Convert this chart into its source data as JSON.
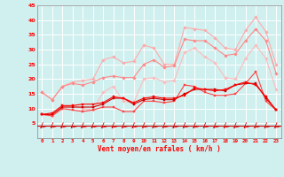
{
  "x": [
    0,
    1,
    2,
    3,
    4,
    5,
    6,
    7,
    8,
    9,
    10,
    11,
    12,
    13,
    14,
    15,
    16,
    17,
    18,
    19,
    20,
    21,
    22,
    23
  ],
  "series": [
    {
      "color": "#ffaaaa",
      "alpha": 1.0,
      "linewidth": 0.8,
      "marker": "D",
      "markersize": 1.8,
      "values": [
        15.5,
        13.0,
        17.5,
        19.0,
        19.5,
        20.0,
        26.5,
        27.5,
        25.5,
        26.0,
        31.5,
        30.5,
        25.0,
        25.0,
        37.5,
        37.0,
        36.5,
        34.0,
        30.5,
        30.0,
        36.5,
        41.0,
        36.0,
        25.0
      ]
    },
    {
      "color": "#ff8888",
      "alpha": 1.0,
      "linewidth": 0.8,
      "marker": "D",
      "markersize": 1.8,
      "values": [
        15.5,
        13.0,
        17.5,
        18.5,
        18.0,
        19.0,
        20.5,
        21.0,
        20.5,
        20.5,
        25.0,
        26.5,
        24.0,
        24.5,
        33.5,
        33.0,
        33.0,
        30.5,
        28.0,
        28.5,
        33.0,
        37.0,
        33.0,
        22.0
      ]
    },
    {
      "color": "#ffbbbb",
      "alpha": 1.0,
      "linewidth": 0.8,
      "marker": "D",
      "markersize": 1.8,
      "values": [
        8.0,
        7.5,
        10.5,
        11.0,
        10.0,
        9.5,
        15.5,
        17.5,
        12.5,
        12.0,
        20.0,
        20.5,
        19.0,
        19.5,
        29.0,
        30.5,
        27.5,
        25.5,
        20.5,
        20.0,
        27.0,
        31.5,
        27.0,
        16.5
      ]
    },
    {
      "color": "#ff4444",
      "alpha": 1.0,
      "linewidth": 0.8,
      "marker": "s",
      "markersize": 1.8,
      "values": [
        8.0,
        7.5,
        10.0,
        9.5,
        9.0,
        9.5,
        10.5,
        10.5,
        9.0,
        9.0,
        12.5,
        12.5,
        12.0,
        12.5,
        18.0,
        17.5,
        15.5,
        14.5,
        14.5,
        15.0,
        18.5,
        22.5,
        12.5,
        9.5
      ]
    },
    {
      "color": "#cc0000",
      "alpha": 1.0,
      "linewidth": 0.8,
      "marker": "s",
      "markersize": 1.8,
      "values": [
        8.0,
        8.0,
        10.5,
        10.5,
        10.5,
        10.5,
        11.5,
        13.5,
        13.5,
        11.5,
        13.0,
        13.5,
        13.0,
        13.0,
        15.0,
        16.5,
        16.5,
        16.5,
        16.0,
        18.0,
        18.5,
        18.5,
        13.5,
        9.5
      ]
    },
    {
      "color": "#ff0000",
      "alpha": 1.0,
      "linewidth": 0.8,
      "marker": "s",
      "markersize": 1.8,
      "values": [
        8.0,
        8.5,
        11.0,
        11.0,
        11.5,
        11.5,
        12.0,
        14.0,
        13.5,
        12.0,
        13.5,
        14.0,
        13.5,
        13.5,
        14.5,
        17.0,
        16.5,
        16.0,
        16.5,
        18.0,
        19.0,
        18.0,
        14.0,
        9.5
      ]
    }
  ],
  "title": "",
  "xlabel": "Vent moyen/en rafales ( km/h )",
  "ylabel": "",
  "xlim": [
    -0.5,
    23.5
  ],
  "ylim": [
    0,
    45
  ],
  "yticks": [
    5,
    10,
    15,
    20,
    25,
    30,
    35,
    40,
    45
  ],
  "xticks": [
    0,
    1,
    2,
    3,
    4,
    5,
    6,
    7,
    8,
    9,
    10,
    11,
    12,
    13,
    14,
    15,
    16,
    17,
    18,
    19,
    20,
    21,
    22,
    23
  ],
  "bg_color": "#d0f0f0",
  "grid_color": "#ffffff",
  "tick_color": "#ff0000",
  "label_color": "#ff0000",
  "arrow_color": "#cc0000",
  "hline_y": 3.8
}
